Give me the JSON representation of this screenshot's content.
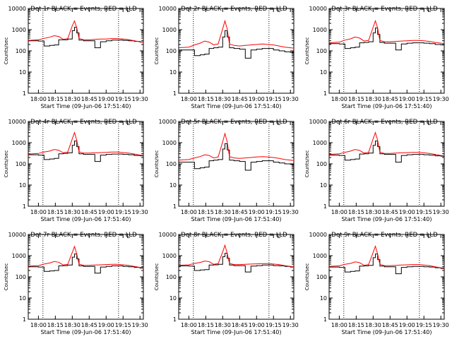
{
  "colors": {
    "events": "#000000",
    "lld": "#ff0000",
    "frame": "#000000"
  },
  "chart_data": [
    {
      "type": "line",
      "title": "Det 1r BLACK = Events, RED = LLD",
      "xlabel": "Start Time (09-Jun-06 17:51:40)",
      "ylabel": "Counts/sec",
      "yscale": "log",
      "ylim": [
        1,
        10000
      ],
      "xticks": [
        "18:00",
        "18:15",
        "18:30",
        "18:45",
        "19:00",
        "19:15",
        "19:30"
      ],
      "yticks": [
        "1",
        "10",
        "100",
        "1000",
        "10000"
      ],
      "marker": "L",
      "legend": "top-right",
      "x": [
        "17:51",
        "18:00",
        "18:05",
        "18:10",
        "18:14",
        "18:18",
        "18:22",
        "18:26",
        "18:30",
        "18:32",
        "18:34",
        "18:36",
        "18:40",
        "18:45",
        "18:50",
        "18:55",
        "19:00",
        "19:05",
        "19:10",
        "19:15",
        "19:20",
        "19:25",
        "19:30",
        "19:33"
      ],
      "series": [
        {
          "name": "Events",
          "values": [
            300,
            290,
            170,
            180,
            190,
            330,
            330,
            360,
            900,
            1300,
            700,
            320,
            300,
            300,
            140,
            270,
            300,
            320,
            320,
            310,
            300,
            280,
            260,
            250
          ]
        },
        {
          "name": "LLD",
          "values": [
            310,
            330,
            390,
            440,
            520,
            480,
            350,
            380,
            1500,
            2600,
            1200,
            390,
            330,
            330,
            350,
            360,
            360,
            380,
            380,
            360,
            340,
            300,
            270,
            260
          ]
        }
      ]
    },
    {
      "type": "line",
      "title": "Det 2r BLACK = Events, RED = LLD",
      "xlabel": "Start Time (09-Jun-06 17:51:40)",
      "ylabel": "Counts/sec",
      "yscale": "log",
      "ylim": [
        1,
        10000
      ],
      "xticks": [
        "18:00",
        "18:15",
        "18:30",
        "18:45",
        "19:00",
        "19:15",
        "19:30"
      ],
      "yticks": [
        "1",
        "10",
        "100",
        "1000",
        "10000"
      ],
      "marker": "L",
      "legend": "top-right",
      "x": [
        "17:51",
        "18:00",
        "18:05",
        "18:10",
        "18:14",
        "18:18",
        "18:22",
        "18:26",
        "18:30",
        "18:32",
        "18:34",
        "18:36",
        "18:40",
        "18:45",
        "18:50",
        "18:55",
        "19:00",
        "19:05",
        "19:10",
        "19:15",
        "19:20",
        "19:25",
        "19:30",
        "19:33"
      ],
      "series": [
        {
          "name": "Events",
          "values": [
            110,
            110,
            60,
            65,
            70,
            130,
            140,
            150,
            450,
            900,
            450,
            140,
            130,
            120,
            45,
            110,
            120,
            130,
            130,
            110,
            100,
            90,
            85,
            80
          ]
        },
        {
          "name": "LLD",
          "values": [
            140,
            150,
            190,
            230,
            290,
            260,
            190,
            210,
            1100,
            2600,
            1100,
            210,
            180,
            170,
            180,
            190,
            200,
            210,
            200,
            190,
            170,
            150,
            140,
            135
          ]
        }
      ]
    },
    {
      "type": "line",
      "title": "Det 3r BLACK = Events, RED = LLD",
      "xlabel": "Start Time (09-Jun-06 17:51:40)",
      "ylabel": "Counts/sec",
      "yscale": "log",
      "ylim": [
        1,
        10000
      ],
      "xticks": [
        "18:00",
        "18:15",
        "18:30",
        "18:45",
        "19:00",
        "19:15",
        "19:30"
      ],
      "yticks": [
        "1",
        "10",
        "100",
        "1000",
        "10000"
      ],
      "marker": "L",
      "legend": "top-right",
      "x": [
        "17:51",
        "18:00",
        "18:05",
        "18:10",
        "18:14",
        "18:18",
        "18:22",
        "18:26",
        "18:30",
        "18:32",
        "18:34",
        "18:36",
        "18:40",
        "18:45",
        "18:50",
        "18:55",
        "19:00",
        "19:05",
        "19:10",
        "19:15",
        "19:20",
        "19:25",
        "19:30",
        "19:33"
      ],
      "series": [
        {
          "name": "Events",
          "values": [
            220,
            210,
            130,
            140,
            150,
            240,
            250,
            270,
            700,
            1200,
            600,
            250,
            230,
            230,
            110,
            210,
            230,
            240,
            240,
            230,
            220,
            200,
            190,
            180
          ]
        },
        {
          "name": "LLD",
          "values": [
            240,
            260,
            320,
            370,
            450,
            400,
            290,
            310,
            1300,
            2600,
            1200,
            310,
            270,
            270,
            280,
            290,
            300,
            310,
            310,
            300,
            280,
            250,
            230,
            220
          ]
        }
      ]
    },
    {
      "type": "line",
      "title": "Det 4r BLACK = Events, RED = LLD",
      "xlabel": "Start Time (09-Jun-06 17:51:40)",
      "ylabel": "Counts/sec",
      "yscale": "log",
      "ylim": [
        1,
        10000
      ],
      "xticks": [
        "18:00",
        "18:15",
        "18:30",
        "18:45",
        "19:00",
        "19:15",
        "19:30"
      ],
      "yticks": [
        "1",
        "10",
        "100",
        "1000",
        "10000"
      ],
      "marker": "L",
      "legend": "top-right",
      "x": [
        "17:51",
        "18:00",
        "18:05",
        "18:10",
        "18:14",
        "18:18",
        "18:22",
        "18:26",
        "18:30",
        "18:32",
        "18:34",
        "18:36",
        "18:40",
        "18:45",
        "18:50",
        "18:55",
        "19:00",
        "19:05",
        "19:10",
        "19:15",
        "19:20",
        "19:25",
        "19:30",
        "19:33"
      ],
      "series": [
        {
          "name": "Events",
          "values": [
            270,
            260,
            160,
            170,
            180,
            300,
            310,
            330,
            750,
            1200,
            650,
            300,
            280,
            280,
            130,
            260,
            280,
            290,
            290,
            280,
            270,
            250,
            240,
            230
          ]
        },
        {
          "name": "LLD",
          "values": [
            290,
            310,
            360,
            400,
            480,
            440,
            330,
            360,
            1500,
            3000,
            1300,
            370,
            320,
            320,
            330,
            340,
            350,
            360,
            360,
            340,
            320,
            290,
            260,
            250
          ]
        }
      ]
    },
    {
      "type": "line",
      "title": "Det 5r BLACK = Events, RED = LLD",
      "xlabel": "Start Time (09-Jun-06 17:51:40)",
      "ylabel": "Counts/sec",
      "yscale": "log",
      "ylim": [
        1,
        10000
      ],
      "xticks": [
        "18:00",
        "18:15",
        "18:30",
        "18:45",
        "19:00",
        "19:15",
        "19:30"
      ],
      "yticks": [
        "1",
        "10",
        "100",
        "1000",
        "10000"
      ],
      "marker": "L",
      "legend": "top-right",
      "x": [
        "17:51",
        "18:00",
        "18:05",
        "18:10",
        "18:14",
        "18:18",
        "18:22",
        "18:26",
        "18:30",
        "18:32",
        "18:34",
        "18:36",
        "18:40",
        "18:45",
        "18:50",
        "18:55",
        "19:00",
        "19:05",
        "19:10",
        "19:15",
        "19:20",
        "19:25",
        "19:30",
        "19:33"
      ],
      "series": [
        {
          "name": "Events",
          "values": [
            120,
            120,
            60,
            65,
            70,
            140,
            150,
            160,
            500,
            900,
            450,
            150,
            140,
            130,
            50,
            120,
            130,
            140,
            140,
            120,
            110,
            100,
            95,
            90
          ]
        },
        {
          "name": "LLD",
          "values": [
            150,
            160,
            190,
            220,
            270,
            250,
            190,
            210,
            1100,
            2700,
            1100,
            220,
            190,
            180,
            190,
            200,
            210,
            220,
            210,
            200,
            180,
            160,
            150,
            145
          ]
        }
      ]
    },
    {
      "type": "line",
      "title": "Det 6r BLACK = Events, RED = LLD",
      "xlabel": "Start Time (09-Jun-06 17:51:40)",
      "ylabel": "Counts/sec",
      "yscale": "log",
      "ylim": [
        1,
        10000
      ],
      "xticks": [
        "18:00",
        "18:15",
        "18:30",
        "18:45",
        "19:00",
        "19:15",
        "19:30"
      ],
      "yticks": [
        "1",
        "10",
        "100",
        "1000",
        "10000"
      ],
      "marker": "L",
      "legend": "top-right",
      "x": [
        "17:51",
        "18:00",
        "18:05",
        "18:10",
        "18:14",
        "18:18",
        "18:22",
        "18:26",
        "18:30",
        "18:32",
        "18:34",
        "18:36",
        "18:40",
        "18:45",
        "18:50",
        "18:55",
        "19:00",
        "19:05",
        "19:10",
        "19:15",
        "19:20",
        "19:25",
        "19:30",
        "19:33"
      ],
      "series": [
        {
          "name": "Events",
          "values": [
            260,
            250,
            150,
            160,
            170,
            290,
            300,
            320,
            750,
            1200,
            650,
            300,
            280,
            280,
            120,
            250,
            270,
            280,
            280,
            270,
            260,
            240,
            230,
            220
          ]
        },
        {
          "name": "LLD",
          "values": [
            280,
            300,
            350,
            400,
            480,
            430,
            320,
            350,
            1500,
            3000,
            1300,
            360,
            310,
            310,
            320,
            330,
            340,
            350,
            350,
            330,
            310,
            280,
            250,
            240
          ]
        }
      ]
    },
    {
      "type": "line",
      "title": "Det 7r BLACK = Events, RED = LLD",
      "xlabel": "Start Time (09-Jun-06 17:51:40)",
      "ylabel": "Counts/sec",
      "yscale": "log",
      "ylim": [
        1,
        10000
      ],
      "xticks": [
        "18:00",
        "18:15",
        "18:30",
        "18:45",
        "19:00",
        "19:15",
        "19:30"
      ],
      "yticks": [
        "1",
        "10",
        "100",
        "1000",
        "10000"
      ],
      "marker": "L",
      "legend": "top-right",
      "x": [
        "17:51",
        "18:00",
        "18:05",
        "18:10",
        "18:14",
        "18:18",
        "18:22",
        "18:26",
        "18:30",
        "18:32",
        "18:34",
        "18:36",
        "18:40",
        "18:45",
        "18:50",
        "18:55",
        "19:00",
        "19:05",
        "19:10",
        "19:15",
        "19:20",
        "19:25",
        "19:30",
        "19:33"
      ],
      "series": [
        {
          "name": "Events",
          "values": [
            300,
            290,
            180,
            190,
            200,
            330,
            340,
            360,
            850,
            1200,
            700,
            330,
            310,
            310,
            150,
            290,
            310,
            330,
            330,
            310,
            300,
            280,
            260,
            250
          ]
        },
        {
          "name": "LLD",
          "values": [
            320,
            340,
            400,
            450,
            530,
            490,
            360,
            390,
            1400,
            2700,
            1200,
            400,
            350,
            350,
            360,
            370,
            380,
            390,
            390,
            370,
            350,
            310,
            280,
            270
          ]
        }
      ]
    },
    {
      "type": "line",
      "title": "Det 8r BLACK = Events, RED = LLD",
      "xlabel": "Start Time (09-Jun-06 17:51:40)",
      "ylabel": "Counts/sec",
      "yscale": "log",
      "ylim": [
        1,
        10000
      ],
      "xticks": [
        "18:00",
        "18:15",
        "18:30",
        "18:45",
        "19:00",
        "19:15",
        "19:30"
      ],
      "yticks": [
        "1",
        "10",
        "100",
        "1000",
        "10000"
      ],
      "marker": "L",
      "legend": "top-right",
      "x": [
        "17:51",
        "18:00",
        "18:05",
        "18:10",
        "18:14",
        "18:18",
        "18:22",
        "18:26",
        "18:30",
        "18:32",
        "18:34",
        "18:36",
        "18:40",
        "18:45",
        "18:50",
        "18:55",
        "19:00",
        "19:05",
        "19:10",
        "19:15",
        "19:20",
        "19:25",
        "19:30",
        "19:33"
      ],
      "series": [
        {
          "name": "Events",
          "values": [
            330,
            320,
            200,
            210,
            220,
            360,
            370,
            390,
            900,
            1300,
            750,
            360,
            340,
            340,
            170,
            320,
            340,
            360,
            360,
            340,
            330,
            310,
            290,
            280
          ]
        },
        {
          "name": "LLD",
          "values": [
            350,
            370,
            430,
            480,
            560,
            520,
            390,
            420,
            1500,
            3100,
            1300,
            430,
            380,
            380,
            390,
            400,
            410,
            420,
            420,
            400,
            380,
            340,
            310,
            300
          ]
        }
      ]
    },
    {
      "type": "line",
      "title": "Det 9r BLACK = Events, RED = LLD",
      "xlabel": "Start Time (09-Jun-06 17:51:40)",
      "ylabel": "Counts/sec",
      "yscale": "log",
      "ylim": [
        1,
        10000
      ],
      "xticks": [
        "18:00",
        "18:15",
        "18:30",
        "18:45",
        "19:00",
        "19:15",
        "19:30"
      ],
      "yticks": [
        "1",
        "10",
        "100",
        "1000",
        "10000"
      ],
      "marker": "L",
      "legend": "top-right",
      "x": [
        "17:51",
        "18:00",
        "18:05",
        "18:10",
        "18:14",
        "18:18",
        "18:22",
        "18:26",
        "18:30",
        "18:32",
        "18:34",
        "18:36",
        "18:40",
        "18:45",
        "18:50",
        "18:55",
        "19:00",
        "19:05",
        "19:10",
        "19:15",
        "19:20",
        "19:25",
        "19:30",
        "19:33"
      ],
      "series": [
        {
          "name": "Events",
          "values": [
            290,
            280,
            170,
            180,
            190,
            320,
            330,
            350,
            800,
            1200,
            650,
            320,
            300,
            300,
            140,
            280,
            300,
            310,
            310,
            300,
            290,
            270,
            250,
            240
          ]
        },
        {
          "name": "LLD",
          "values": [
            310,
            330,
            390,
            430,
            510,
            470,
            350,
            380,
            1400,
            2800,
            1200,
            390,
            340,
            340,
            350,
            360,
            370,
            380,
            380,
            360,
            340,
            300,
            270,
            260
          ]
        }
      ]
    }
  ]
}
